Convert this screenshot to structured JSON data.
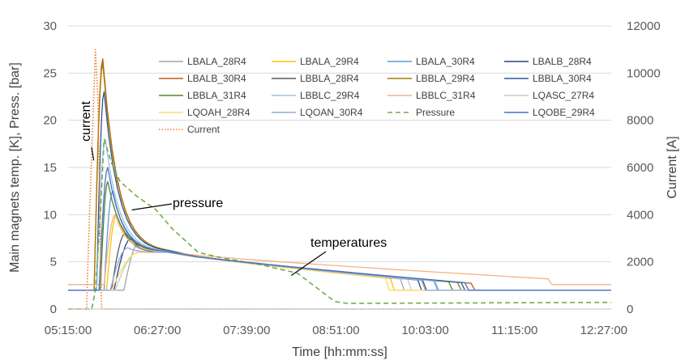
{
  "chart_data": {
    "type": "line",
    "xlabel": "Time [hh:mm:ss]",
    "ylabel_left": "Main magnets temp. [K], Press. [bar]",
    "ylabel_right": "Current [A]",
    "x_tick_labels": [
      "05:15:00",
      "06:27:00",
      "07:39:00",
      "08:51:00",
      "10:03:00",
      "11:15:00",
      "12:27:00"
    ],
    "x_tick_minutes": [
      315,
      387,
      459,
      531,
      603,
      675,
      747
    ],
    "xlim_minutes": [
      315,
      753
    ],
    "y_left_ticks": [
      "0",
      "5",
      "10",
      "15",
      "20",
      "25",
      "30"
    ],
    "ylim_left": [
      0,
      30
    ],
    "y_right_ticks": [
      "0",
      "2000",
      "4000",
      "6000",
      "8000",
      "10000",
      "12000"
    ],
    "ylim_right": [
      0,
      12000
    ],
    "grid": "horizontal",
    "legend_placement": "top, inside plot",
    "annotations": [
      {
        "text": "current",
        "points_to": {
          "x": 337,
          "y_right": 6300
        }
      },
      {
        "text": "pressure",
        "points_to": {
          "x": 386,
          "y": 10.5
        }
      },
      {
        "text": "temperatures",
        "points_to": {
          "x": 495,
          "y": 3.9
        }
      }
    ],
    "series": [
      {
        "name": "LBALA_28R4",
        "color": "#A5A5A5",
        "axis": "left",
        "peak": 7.0,
        "rise_start": 360,
        "peak_time": 372,
        "end_time": 583,
        "base": 2.0
      },
      {
        "name": "LBALA_29R4",
        "color": "#FFC000",
        "axis": "left",
        "peak": 10.0,
        "rise_start": 346,
        "peak_time": 354,
        "end_time": 575,
        "base": 2.0
      },
      {
        "name": "LBALA_30R4",
        "color": "#5B9BD5",
        "axis": "left",
        "peak": 12.5,
        "rise_start": 344,
        "peak_time": 351,
        "end_time": 610,
        "base": 2.0
      },
      {
        "name": "LBALB_28R4",
        "color": "#264478",
        "axis": "left",
        "peak": 7.5,
        "rise_start": 352,
        "peak_time": 366,
        "end_time": 597,
        "base": 2.0
      },
      {
        "name": "LBALB_30R4",
        "color": "#C55A11",
        "axis": "left",
        "peak": 26.5,
        "rise_start": 336,
        "peak_time": 343,
        "end_time": 640,
        "base": 2.0
      },
      {
        "name": "LBBLA_28R4",
        "color": "#595959",
        "axis": "left",
        "peak": 8.0,
        "rise_start": 350,
        "peak_time": 361,
        "end_time": 601,
        "base": 2.0
      },
      {
        "name": "LBBLA_29R4",
        "color": "#A67C00",
        "axis": "left",
        "peak": 26.0,
        "rise_start": 336,
        "peak_time": 343,
        "end_time": 629,
        "base": 2.0
      },
      {
        "name": "LBBLA_30R4",
        "color": "#2F5597",
        "axis": "left",
        "peak": 23.0,
        "rise_start": 338,
        "peak_time": 344,
        "end_time": 632,
        "base": 2.0
      },
      {
        "name": "LBBLA_31R4",
        "color": "#548235",
        "axis": "left",
        "peak": 13.5,
        "rise_start": 341,
        "peak_time": 347,
        "end_time": 622,
        "base": 2.0
      },
      {
        "name": "LBBLC_29R4",
        "color": "#9DC3E6",
        "axis": "left",
        "peak": 18.0,
        "rise_start": 338,
        "peak_time": 345,
        "end_time": 611,
        "base": 2.0
      },
      {
        "name": "LBBLC_31R4",
        "color": "#F4B183",
        "axis": "left",
        "peak": 10.0,
        "rise_start": 344,
        "peak_time": 353,
        "end_time": 702,
        "base": 2.6
      },
      {
        "name": "LQASC_27R4",
        "color": "#C9C9C9",
        "axis": "left",
        "peak": 6.0,
        "rise_start": 353,
        "peak_time": 371,
        "end_time": 589,
        "base": 2.0
      },
      {
        "name": "LQOAH_28R4",
        "color": "#FFD966",
        "axis": "left",
        "peak": 6.0,
        "rise_start": 350,
        "peak_time": 372,
        "end_time": 571,
        "base": 2.0
      },
      {
        "name": "LQOAN_30R4",
        "color": "#8FAADC",
        "axis": "left",
        "peak": 6.5,
        "rise_start": 349,
        "peak_time": 363,
        "end_time": 600,
        "base": 2.0
      },
      {
        "name": "Pressure",
        "color": "#70AD47",
        "axis": "left",
        "style": "dashed",
        "points": [
          [
            315,
            0.0
          ],
          [
            334,
            0.0
          ],
          [
            337,
            2.0
          ],
          [
            341,
            10.0
          ],
          [
            344,
            18.0
          ],
          [
            350,
            15.5
          ],
          [
            357,
            13.5
          ],
          [
            370,
            12.0
          ],
          [
            386,
            10.5
          ],
          [
            399,
            8.5
          ],
          [
            420,
            6.0
          ],
          [
            440,
            5.4
          ],
          [
            470,
            4.7
          ],
          [
            500,
            3.8
          ],
          [
            530,
            0.8
          ],
          [
            540,
            0.6
          ],
          [
            753,
            0.7
          ]
        ]
      },
      {
        "name": "LQOBE_29R4",
        "color": "#4472C4",
        "axis": "left",
        "peak": 15.0,
        "rise_start": 340,
        "peak_time": 347,
        "end_time": 635,
        "base": 2.0
      },
      {
        "name": "Current",
        "color": "#ED7D31",
        "axis": "right",
        "style": "dotted",
        "points": [
          [
            315,
            0
          ],
          [
            330,
            0
          ],
          [
            331,
            2000
          ],
          [
            333,
            5000
          ],
          [
            335,
            8000
          ],
          [
            337,
            11000
          ],
          [
            339,
            9000
          ],
          [
            341,
            3000
          ],
          [
            342,
            0
          ],
          [
            680,
            0
          ]
        ]
      }
    ]
  }
}
